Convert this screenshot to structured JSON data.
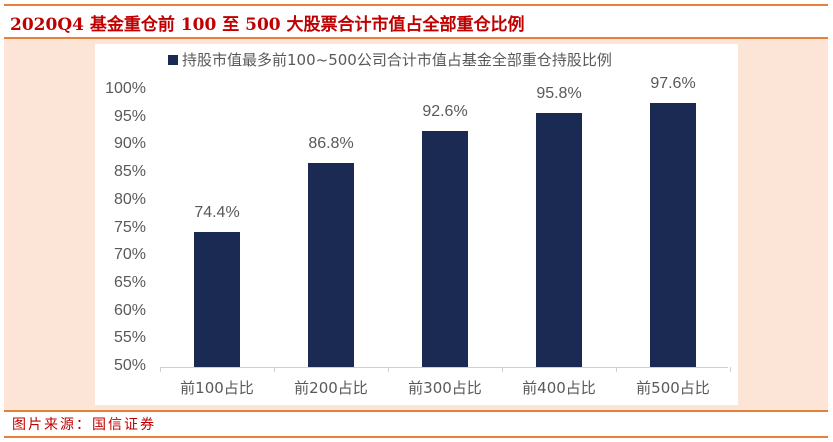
{
  "title": "2020Q4 基金重仓前 100 至 500 大股票合计市值占全部重仓比例",
  "source": "图片来源：国信证券",
  "colors": {
    "bar": "#1a2a52",
    "title": "#c00000",
    "rule": "#e8803a",
    "panel": "#fce4d6"
  },
  "legend": {
    "label": "持股市值最多前100~500公司合计市值占基金全部重仓持股比例"
  },
  "y_ticks": [
    "100%",
    "95%",
    "90%",
    "85%",
    "80%",
    "75%",
    "70%",
    "65%",
    "60%",
    "55%",
    "50%"
  ],
  "chart_data": {
    "type": "bar",
    "title": "2020Q4 基金重仓前 100 至 500 大股票合计市值占全部重仓比例",
    "categories": [
      "前100占比",
      "前200占比",
      "前300占比",
      "前400占比",
      "前500占比"
    ],
    "series": [
      {
        "name": "持股市值最多前100~500公司合计市值占基金全部重仓持股比例",
        "values": [
          74.4,
          86.8,
          92.6,
          95.8,
          97.6
        ]
      }
    ],
    "data_labels": [
      "74.4%",
      "86.8%",
      "92.6%",
      "95.8%",
      "97.6%"
    ],
    "xlabel": "",
    "ylabel": "",
    "ylim": [
      50,
      100
    ],
    "ytick_step": 5,
    "grid": false,
    "legend_position": "top"
  }
}
